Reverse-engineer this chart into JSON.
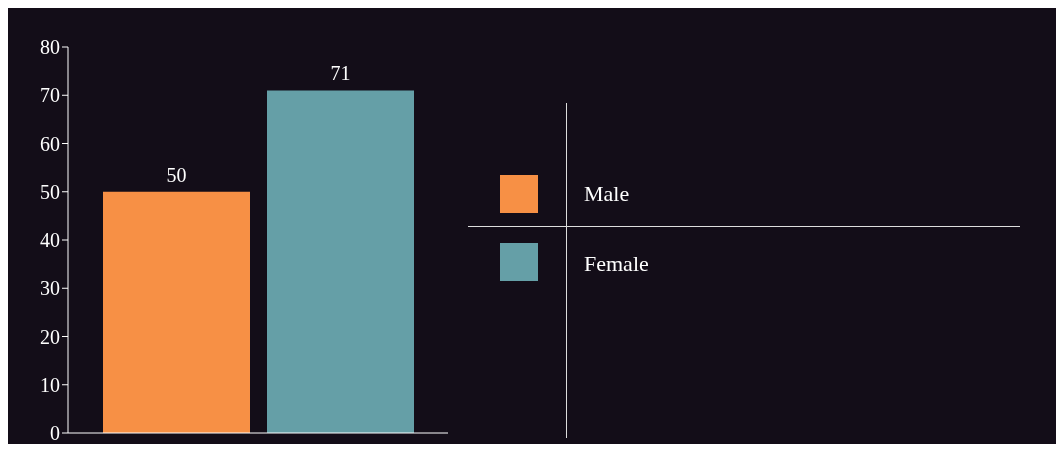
{
  "chart_data": {
    "type": "bar",
    "categories": [
      null
    ],
    "series": [
      {
        "name": "Male",
        "color": "#f79045",
        "values": [
          50
        ]
      },
      {
        "name": "Female",
        "color": "#659fa7",
        "values": [
          71
        ]
      }
    ],
    "ylim": [
      0,
      80
    ],
    "yticks": [
      0,
      10,
      20,
      30,
      40,
      50,
      60,
      70,
      80
    ],
    "data_labels": true,
    "legend": "right",
    "grid": false
  }
}
